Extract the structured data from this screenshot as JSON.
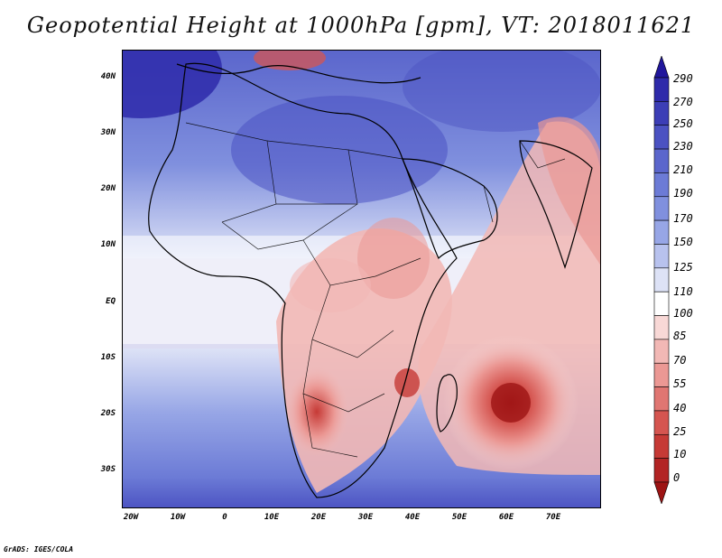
{
  "title": "Geopotential Height at 1000hPa [gpm], VT: 2018011621",
  "credit": "GrADS: IGES/COLA",
  "map": {
    "latitude_labels": [
      "40N",
      "30N",
      "20N",
      "10N",
      "EQ",
      "10S",
      "20S",
      "30S"
    ],
    "longitude_labels": [
      "20W",
      "10W",
      "0",
      "10E",
      "20E",
      "30E",
      "40E",
      "50E",
      "60E",
      "70E"
    ]
  },
  "colorbar": {
    "labels": [
      "290",
      "270",
      "250",
      "230",
      "210",
      "190",
      "170",
      "150",
      "125",
      "110",
      "100",
      "85",
      "70",
      "55",
      "40",
      "25",
      "10",
      "0"
    ],
    "colors": [
      "#20169c",
      "#2e2aaa",
      "#3c3eb6",
      "#4b52c2",
      "#5b66cc",
      "#6c7bd6",
      "#8090de",
      "#97a6e6",
      "#b8c2ee",
      "#dde2f6",
      "#ffffff",
      "#f8d8d6",
      "#f2b8b5",
      "#eb9894",
      "#e07672",
      "#d55550",
      "#c63a36",
      "#b22424",
      "#9d1414"
    ]
  }
}
